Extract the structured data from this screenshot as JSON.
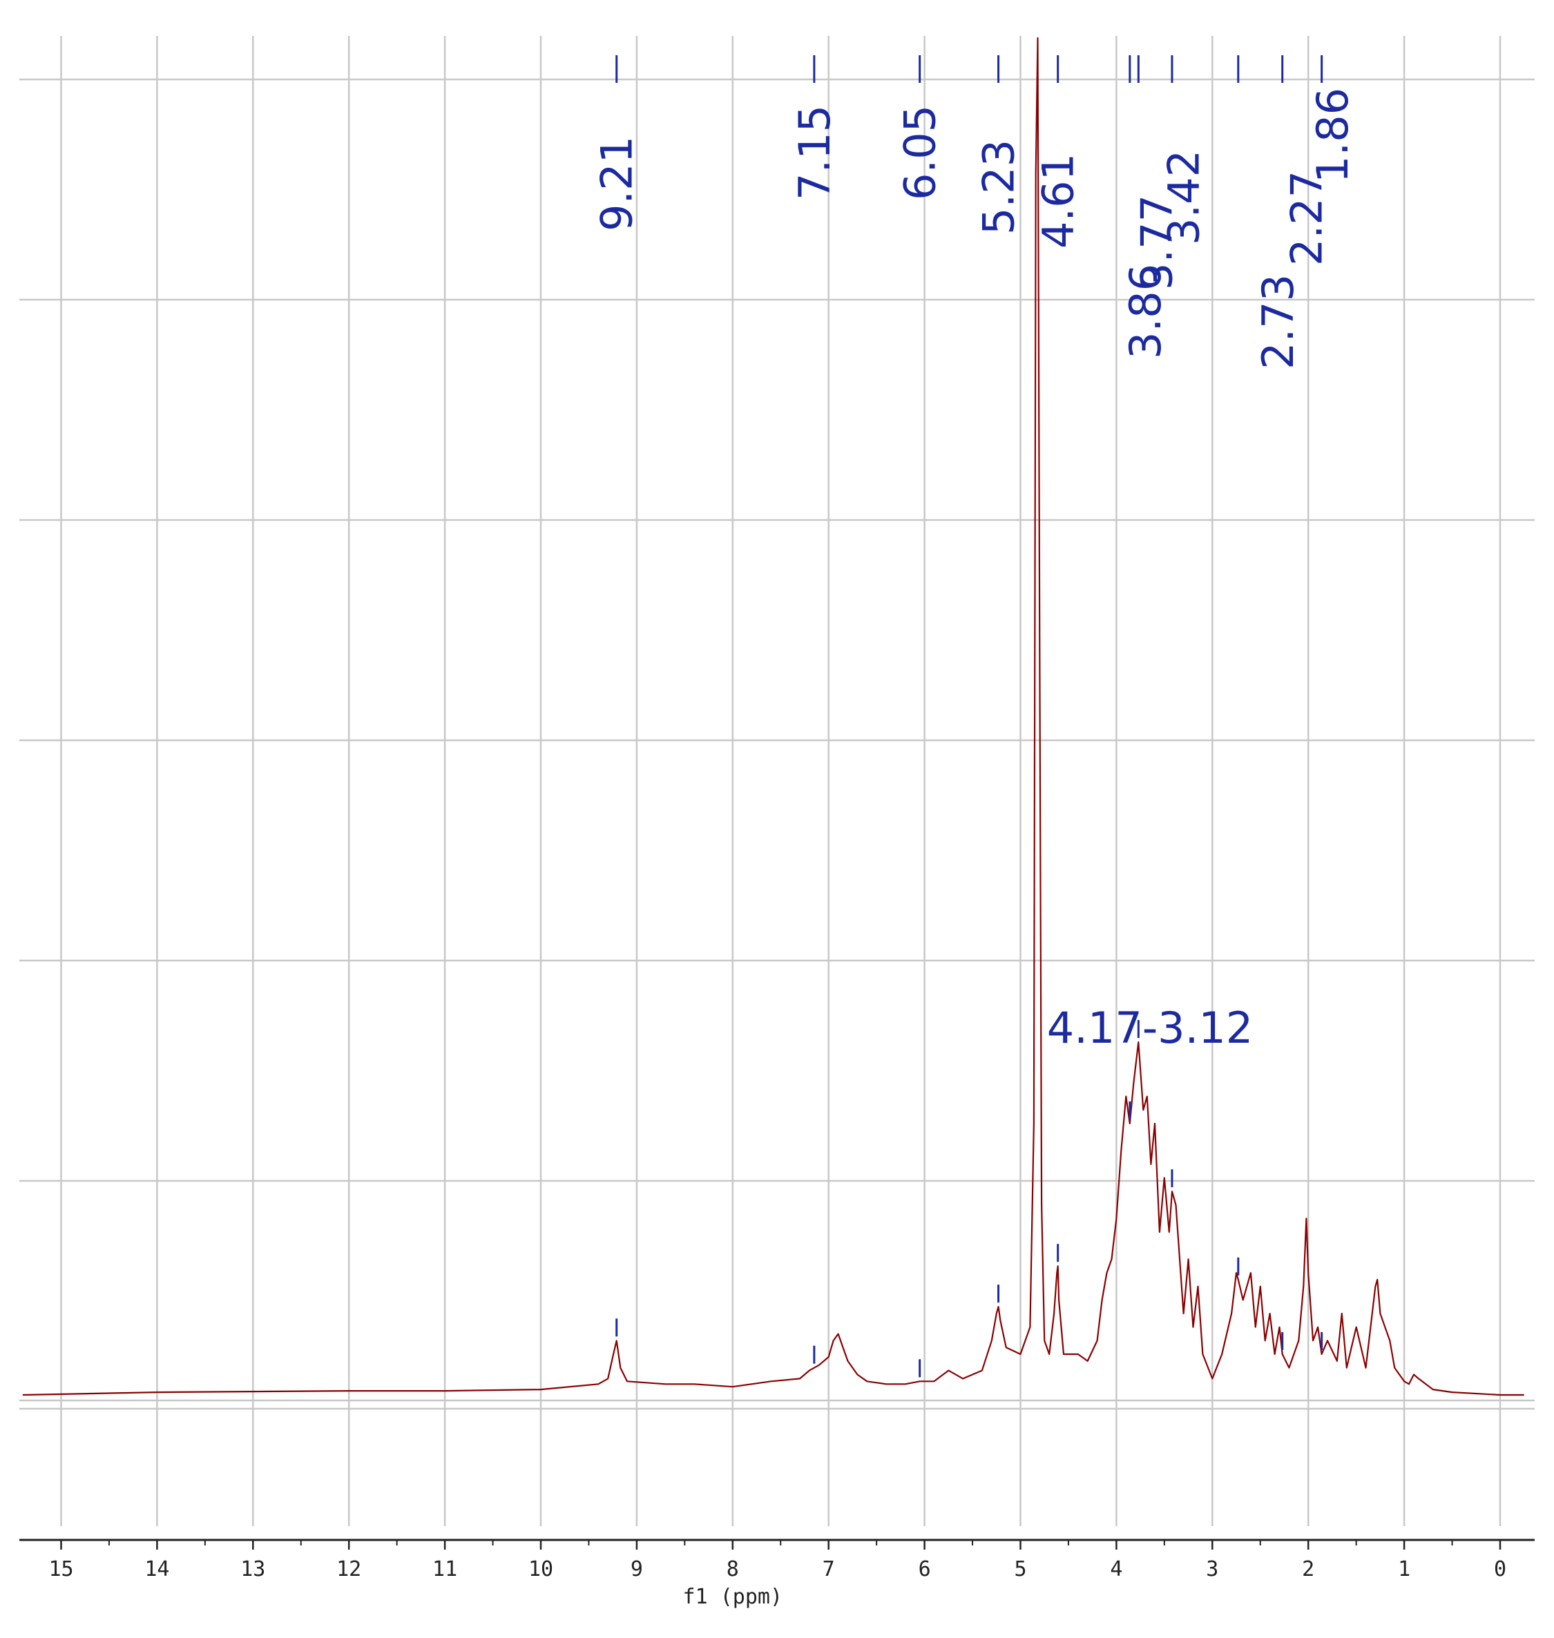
{
  "chart_data": {
    "type": "line",
    "title": "",
    "xlabel": "f1 (ppm)",
    "ylabel": "",
    "xlim": [
      15.4,
      -0.25
    ],
    "x_reversed": true,
    "ylim": [
      -0.17,
      1.0
    ],
    "grid": true,
    "x_ticks": [
      "15",
      "14",
      "13",
      "12",
      "11",
      "10",
      "9",
      "8",
      "7",
      "6",
      "5",
      "4",
      "3",
      "2",
      "1",
      "0"
    ],
    "colors": {
      "spectrum": "#8b0000",
      "annotation": "#1c2aa0",
      "grid": "#c8c8c8",
      "axis": "#222222"
    },
    "peak_labels": [
      "9.21",
      "7.15",
      "6.05",
      "5.23",
      "4.61",
      "3.86",
      "3.77",
      "3.42",
      "2.73",
      "2.27",
      "1.86"
    ],
    "range_label": "4.17-3.12",
    "series": [
      {
        "x": [
          15.4,
          14.0,
          12.0,
          11.0,
          10.0,
          9.4,
          9.3,
          9.25,
          9.21,
          9.17,
          9.1,
          8.7,
          8.4,
          8.0,
          7.6,
          7.3,
          7.2,
          7.15,
          7.1,
          7.0,
          6.95,
          6.9,
          6.85,
          6.8,
          6.7,
          6.6,
          6.4,
          6.2,
          6.05,
          5.9,
          5.75,
          5.6,
          5.4,
          5.3,
          5.25,
          5.23,
          5.21,
          5.15,
          5.0,
          4.9,
          4.86,
          4.84,
          4.82,
          4.8,
          4.78,
          4.75,
          4.7,
          4.65,
          4.62,
          4.61,
          4.6,
          4.55,
          4.4,
          4.3,
          4.2,
          4.15,
          4.1,
          4.05,
          4.0,
          3.95,
          3.9,
          3.86,
          3.82,
          3.77,
          3.72,
          3.68,
          3.64,
          3.6,
          3.55,
          3.5,
          3.45,
          3.42,
          3.38,
          3.3,
          3.25,
          3.2,
          3.15,
          3.1,
          3.0,
          2.9,
          2.8,
          2.75,
          2.73,
          2.68,
          2.6,
          2.55,
          2.5,
          2.45,
          2.4,
          2.35,
          2.3,
          2.27,
          2.2,
          2.1,
          2.05,
          2.02,
          2.0,
          1.95,
          1.9,
          1.86,
          1.8,
          1.7,
          1.65,
          1.6,
          1.5,
          1.4,
          1.3,
          1.28,
          1.25,
          1.2,
          1.15,
          1.1,
          1.0,
          0.95,
          0.9,
          0.85,
          0.7,
          0.5,
          0.0,
          -0.25
        ],
        "y": [
          0.0,
          0.002,
          0.003,
          0.003,
          0.004,
          0.008,
          0.012,
          0.028,
          0.04,
          0.02,
          0.01,
          0.008,
          0.008,
          0.006,
          0.01,
          0.012,
          0.018,
          0.02,
          0.022,
          0.028,
          0.04,
          0.045,
          0.035,
          0.025,
          0.015,
          0.01,
          0.008,
          0.008,
          0.01,
          0.01,
          0.018,
          0.012,
          0.018,
          0.04,
          0.06,
          0.065,
          0.055,
          0.035,
          0.03,
          0.05,
          0.2,
          0.9,
          1.0,
          0.55,
          0.14,
          0.04,
          0.03,
          0.06,
          0.09,
          0.095,
          0.07,
          0.03,
          0.03,
          0.025,
          0.04,
          0.07,
          0.09,
          0.1,
          0.13,
          0.18,
          0.22,
          0.2,
          0.23,
          0.26,
          0.21,
          0.22,
          0.17,
          0.2,
          0.12,
          0.16,
          0.12,
          0.15,
          0.14,
          0.06,
          0.1,
          0.05,
          0.08,
          0.03,
          0.012,
          0.03,
          0.06,
          0.09,
          0.085,
          0.07,
          0.09,
          0.05,
          0.08,
          0.04,
          0.06,
          0.03,
          0.05,
          0.03,
          0.02,
          0.04,
          0.08,
          0.13,
          0.09,
          0.04,
          0.05,
          0.03,
          0.04,
          0.025,
          0.06,
          0.02,
          0.05,
          0.02,
          0.08,
          0.085,
          0.06,
          0.05,
          0.04,
          0.02,
          0.01,
          0.008,
          0.015,
          0.012,
          0.004,
          0.002,
          0.0,
          0.0
        ]
      }
    ]
  }
}
